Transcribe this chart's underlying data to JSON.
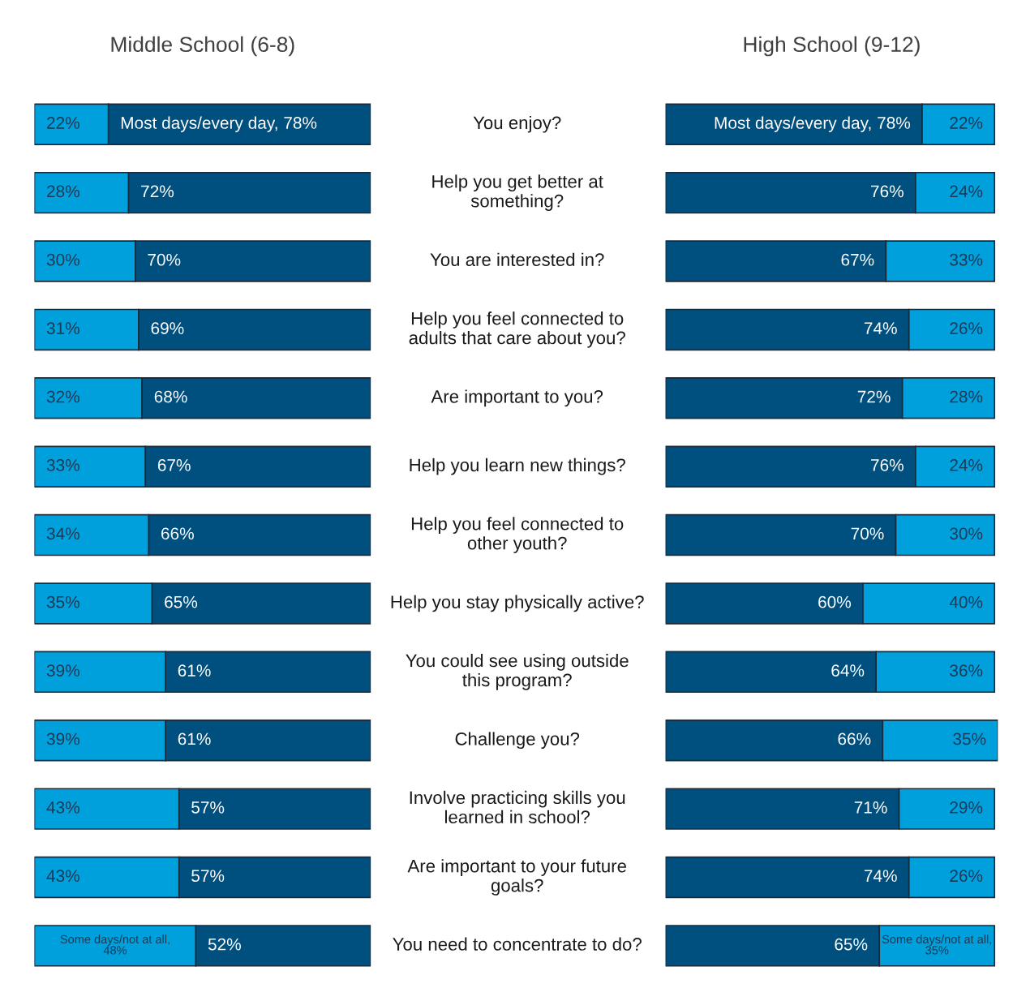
{
  "chart_data": [
    {
      "type": "bar",
      "orientation": "horizontal",
      "stacked": true,
      "tick_labels": "y",
      "title": "Middle School (6-8)",
      "categories": [
        "You enjoy?",
        "Help you get better at\nsomething?",
        "You are interested in?",
        "Help you feel connected to\nadults that care about you?",
        "Are important to you?",
        "Help you learn new things?",
        "Help you feel connected to\nother youth?",
        "Help you stay physically active?",
        "You could see using outside\nthis program?",
        "Challenge you?",
        "Involve practicing skills you\nlearned in school?",
        "Are important to your future\ngoals?",
        "You need to concentrate to do?"
      ],
      "series": [
        {
          "color": "#00a0dc",
          "values": [
            22,
            28,
            30,
            31,
            32,
            33,
            34,
            35,
            39,
            39,
            43,
            43,
            48
          ],
          "value_labels": [
            "22%",
            "28%",
            "30%",
            "31%",
            "32%",
            "33%",
            "34%",
            "35%",
            "39%",
            "39%",
            "43%",
            "43%",
            "Some days/not at all, 48%"
          ]
        },
        {
          "color": "#00507f",
          "values": [
            78,
            72,
            70,
            69,
            68,
            67,
            66,
            65,
            61,
            61,
            57,
            57,
            52
          ],
          "value_labels": [
            "Most days/every day, 78%",
            "72%",
            "70%",
            "69%",
            "68%",
            "67%",
            "66%",
            "65%",
            "61%",
            "61%",
            "57%",
            "57%",
            "52%"
          ]
        }
      ]
    },
    {
      "type": "bar",
      "orientation": "horizontal",
      "stacked": true,
      "tick_labels": false,
      "title": "High School (9-12)",
      "categories": [
        null,
        null,
        null,
        null,
        null,
        null,
        null,
        null,
        null,
        null,
        null,
        null,
        null
      ],
      "series": [
        {
          "color": "#00507f",
          "values": [
            78,
            76,
            67,
            74,
            72,
            76,
            70,
            60,
            64,
            66,
            71,
            74,
            65
          ],
          "value_labels": [
            "Most days/every day, 78%",
            "76%",
            "67%",
            "74%",
            "72%",
            "76%",
            "70%",
            "60%",
            "64%",
            "66%",
            "71%",
            "74%",
            "65%"
          ]
        },
        {
          "color": "#00a0dc",
          "values": [
            22,
            24,
            33,
            26,
            28,
            24,
            30,
            40,
            36,
            35,
            29,
            26,
            35
          ],
          "value_labels": [
            "22%",
            "24%",
            "33%",
            "26%",
            "28%",
            "24%",
            "30%",
            "40%",
            "36%",
            "35%",
            "29%",
            "26%",
            "Some days/not at all, 35%"
          ]
        }
      ]
    }
  ]
}
